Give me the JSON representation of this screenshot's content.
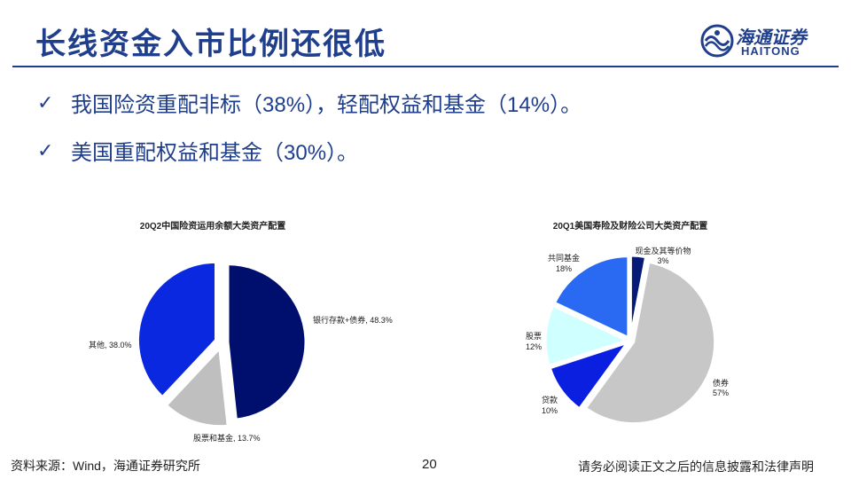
{
  "header": {
    "title": "长线资金入市比例还很低",
    "logo_cn": "海通证券",
    "logo_en": "HAITONG"
  },
  "bullets": [
    "我国险资重配非标（38%），轻配权益和基金（14%）。",
    "美国重配权益和基金（30%）。"
  ],
  "chart_data": [
    {
      "type": "pie",
      "title": "20Q2中国险资运用余额大类资产配置",
      "slices": [
        {
          "name": "银行存款+债券",
          "value": 48.3,
          "label": "银行存款+债券, 48.3%",
          "color": "#000f6e"
        },
        {
          "name": "股票和基金",
          "value": 13.7,
          "label": "股票和基金, 13.7%",
          "color": "#bfbfbf"
        },
        {
          "name": "其他",
          "value": 38.0,
          "label": "其他, 38.0%",
          "color": "#0a28e0"
        }
      ]
    },
    {
      "type": "pie",
      "title": "20Q1美国寿险及财险公司大类资产配置",
      "slices": [
        {
          "name": "现金及其等价物",
          "value": 3,
          "label_name": "现金及其等价物",
          "label_value": "3%",
          "color": "#061b78"
        },
        {
          "name": "债券",
          "value": 57,
          "label_name": "债券",
          "label_value": "57%",
          "color": "#c7c7c7"
        },
        {
          "name": "贷款",
          "value": 10,
          "label_name": "贷款",
          "label_value": "10%",
          "color": "#0a1fe0"
        },
        {
          "name": "股票",
          "value": 12,
          "label_name": "股票",
          "label_value": "12%",
          "color": "#cfffff"
        },
        {
          "name": "共同基金",
          "value": 18,
          "label_name": "共同基金",
          "label_value": "18%",
          "color": "#2a6af2"
        }
      ]
    }
  ],
  "footer": {
    "source": "资料来源：Wind，海通证券研究所",
    "page": "20",
    "disclaimer": "请务必阅读正文之后的信息披露和法律声明"
  },
  "icons": {
    "bullet": "check-icon",
    "logo": "haitong-logo-icon"
  }
}
